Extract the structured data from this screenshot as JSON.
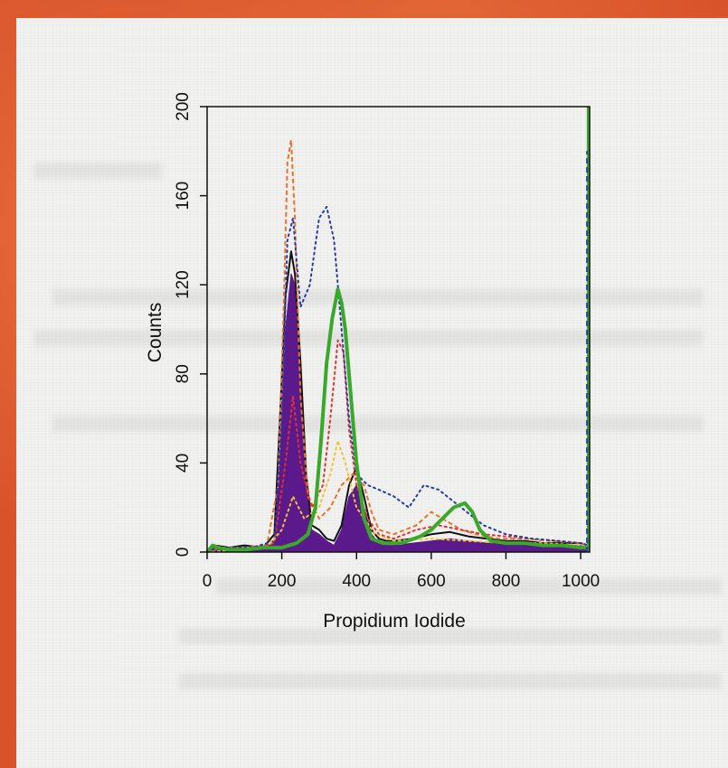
{
  "chart_data": {
    "type": "line",
    "title": "",
    "xlabel": "Propidium Iodide",
    "ylabel": "Counts",
    "xlim": [
      0,
      1024
    ],
    "ylim": [
      0,
      200
    ],
    "xticks": [
      0,
      200,
      400,
      600,
      800,
      1000
    ],
    "yticks": [
      0,
      40,
      80,
      120,
      160,
      200
    ],
    "grid": false,
    "legend": "none",
    "series": [
      {
        "color": "#5a1a8c",
        "style": "filled",
        "x": [
          0,
          20,
          60,
          100,
          150,
          180,
          195,
          210,
          225,
          235,
          250,
          265,
          280,
          300,
          320,
          340,
          360,
          380,
          400,
          420,
          440,
          460,
          480,
          500,
          550,
          600,
          650,
          700,
          750,
          800,
          850,
          900,
          950,
          1000,
          1020
        ],
        "y": [
          0,
          2,
          1,
          2,
          1,
          5,
          40,
          100,
          125,
          120,
          80,
          30,
          10,
          8,
          5,
          3,
          10,
          25,
          30,
          20,
          8,
          4,
          3,
          3,
          4,
          5,
          6,
          5,
          4,
          4,
          4,
          3,
          3,
          3,
          2
        ]
      },
      {
        "color": "#111111",
        "style": "solid",
        "x": [
          0,
          20,
          60,
          100,
          150,
          180,
          195,
          210,
          225,
          235,
          250,
          265,
          280,
          300,
          320,
          340,
          360,
          380,
          400,
          420,
          440,
          460,
          480,
          500,
          550,
          600,
          650,
          700,
          750,
          800,
          850,
          900,
          950,
          1000,
          1020
        ],
        "y": [
          0,
          3,
          2,
          3,
          2,
          8,
          60,
          115,
          135,
          125,
          85,
          35,
          12,
          10,
          6,
          5,
          12,
          30,
          38,
          25,
          10,
          6,
          5,
          5,
          6,
          8,
          9,
          7,
          6,
          5,
          5,
          4,
          4,
          4,
          3
        ]
      },
      {
        "color": "#e8742a",
        "style": "dashed",
        "x": [
          0,
          40,
          100,
          160,
          190,
          205,
          215,
          225,
          235,
          250,
          270,
          300,
          330,
          360,
          390,
          420,
          440,
          460,
          500,
          560,
          600,
          640,
          680,
          720,
          780,
          850,
          920,
          1000,
          1020
        ],
        "y": [
          0,
          2,
          2,
          3,
          30,
          110,
          175,
          185,
          150,
          70,
          25,
          15,
          20,
          30,
          35,
          30,
          18,
          10,
          8,
          12,
          18,
          14,
          10,
          8,
          6,
          6,
          5,
          4,
          3
        ]
      },
      {
        "color": "#e03030",
        "style": "dotted",
        "x": [
          0,
          50,
          120,
          180,
          210,
          230,
          250,
          280,
          310,
          330,
          350,
          365,
          380,
          400,
          430,
          460,
          500,
          560,
          620,
          680,
          740,
          800,
          870,
          940,
          1000,
          1020
        ],
        "y": [
          0,
          2,
          2,
          4,
          40,
          70,
          40,
          20,
          30,
          60,
          95,
          90,
          55,
          30,
          15,
          8,
          6,
          10,
          12,
          10,
          8,
          7,
          6,
          5,
          4,
          3
        ]
      },
      {
        "color": "#2a3aa8",
        "style": "dotted",
        "x": [
          0,
          50,
          120,
          180,
          200,
          215,
          230,
          250,
          275,
          300,
          320,
          340,
          360,
          380,
          400,
          430,
          460,
          500,
          540,
          580,
          620,
          680,
          740,
          800,
          870,
          940,
          1000,
          1020
        ],
        "y": [
          0,
          2,
          2,
          5,
          60,
          140,
          150,
          110,
          120,
          150,
          155,
          140,
          100,
          60,
          35,
          30,
          28,
          25,
          20,
          30,
          28,
          20,
          12,
          8,
          6,
          5,
          4,
          3
        ]
      },
      {
        "color": "#f2c232",
        "style": "dotted",
        "x": [
          0,
          80,
          160,
          200,
          230,
          260,
          300,
          330,
          350,
          370,
          400,
          450,
          500,
          600,
          700,
          800,
          900,
          1000,
          1020
        ],
        "y": [
          0,
          1,
          2,
          10,
          25,
          15,
          20,
          35,
          50,
          40,
          20,
          8,
          5,
          6,
          5,
          4,
          4,
          3,
          2
        ]
      },
      {
        "color": "#3aa82a",
        "style": "solid-thick",
        "x": [
          0,
          15,
          30,
          60,
          100,
          150,
          200,
          240,
          270,
          290,
          305,
          320,
          335,
          350,
          360,
          370,
          385,
          400,
          420,
          440,
          470,
          520,
          570,
          600,
          630,
          660,
          690,
          710,
          730,
          760,
          800,
          850,
          900,
          950,
          1000,
          1015
        ],
        "y": [
          0,
          3,
          2,
          1,
          1,
          2,
          2,
          4,
          8,
          20,
          50,
          85,
          105,
          118,
          112,
          100,
          70,
          40,
          15,
          6,
          4,
          4,
          7,
          10,
          15,
          20,
          22,
          18,
          10,
          5,
          4,
          4,
          3,
          3,
          2,
          2
        ]
      }
    ]
  }
}
